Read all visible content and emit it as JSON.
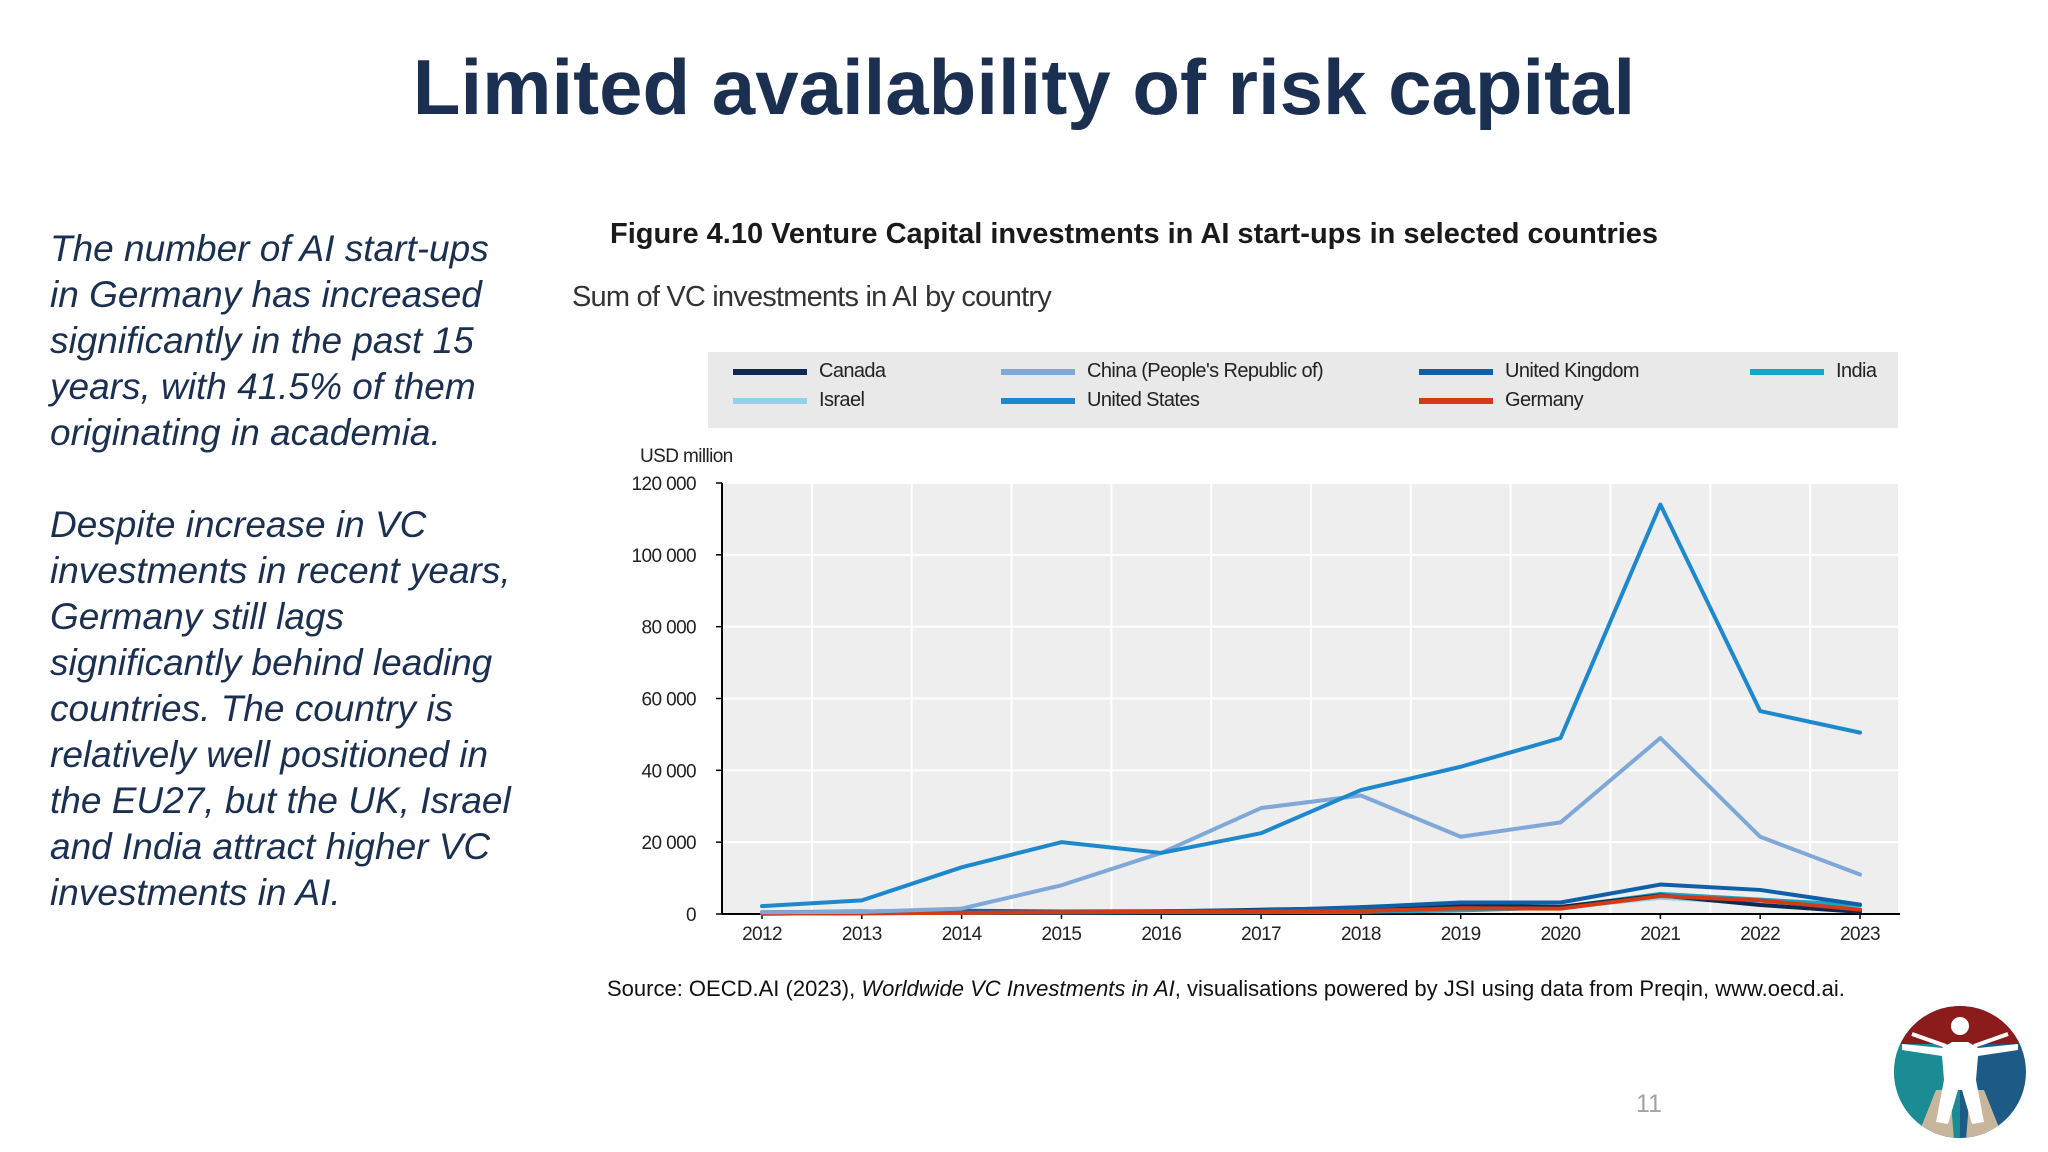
{
  "slide": {
    "title": "Limited availability of risk capital",
    "paragraphs": [
      "The number of AI start-ups in Germany has increased significantly in the past 15 years, with 41.5% of them originating in academia.",
      "Despite increase in VC investments in recent years, Germany still lags significantly behind leading countries. The country is relatively well positioned in the EU27, but the UK, Israel and India attract higher VC investments in AI."
    ],
    "figure_title": "Figure 4.10 Venture Capital investments in AI start-ups in selected countries",
    "source_prefix": "Source: OECD.AI (2023), ",
    "source_italic": "Worldwide VC Investments in AI",
    "source_suffix": ", visualisations powered by JSI using data from Preqin, www.oecd.ai.",
    "page_number": "11",
    "logo_icon": "vitruvian-man-logo-icon"
  },
  "chart_data": {
    "type": "line",
    "title": "Sum of VC investments in AI by country",
    "ylabel": "USD million",
    "xlabel": "",
    "x": [
      "2012",
      "2013",
      "2014",
      "2015",
      "2016",
      "2017",
      "2018",
      "2019",
      "2020",
      "2021",
      "2022",
      "2023"
    ],
    "ylim": [
      0,
      120000
    ],
    "yticks": [
      0,
      20000,
      40000,
      60000,
      80000,
      100000,
      120000
    ],
    "ytick_labels": [
      "0",
      "20 000",
      "40 000",
      "60 000",
      "80 000",
      "100 000",
      "120 000"
    ],
    "grid": "vertical",
    "legend_position": "top",
    "series": [
      {
        "name": "Canada",
        "color": "#0e2a52",
        "values": [
          100,
          200,
          500,
          600,
          700,
          1200,
          1600,
          2200,
          2000,
          5200,
          2500,
          600
        ]
      },
      {
        "name": "China (People's Republic of)",
        "color": "#7fa8d8",
        "values": [
          500,
          600,
          1500,
          8000,
          17000,
          29500,
          33000,
          21500,
          25500,
          49000,
          21500,
          11000
        ]
      },
      {
        "name": "United Kingdom",
        "color": "#1060a8",
        "values": [
          500,
          700,
          900,
          700,
          800,
          1000,
          1900,
          3200,
          3200,
          8200,
          6700,
          2600
        ]
      },
      {
        "name": "India",
        "color": "#13a8c8",
        "values": [
          100,
          200,
          300,
          400,
          500,
          500,
          600,
          1000,
          1800,
          5600,
          4000,
          2500
        ]
      },
      {
        "name": "Israel",
        "color": "#8dd4e8",
        "values": [
          150,
          250,
          400,
          500,
          600,
          800,
          1000,
          1500,
          1800,
          4500,
          3000,
          1500
        ]
      },
      {
        "name": "United States",
        "color": "#1e88cc",
        "values": [
          2200,
          3800,
          13000,
          20000,
          17000,
          22500,
          34500,
          41000,
          49000,
          114000,
          56500,
          50500
        ]
      },
      {
        "name": "Germany",
        "color": "#d23b16",
        "values": [
          100,
          200,
          300,
          500,
          600,
          600,
          800,
          1600,
          1500,
          5000,
          3800,
          1200
        ]
      }
    ],
    "legend_rows": [
      [
        "Canada",
        "China (People's Republic of)",
        "United Kingdom",
        "India"
      ],
      [
        "Israel",
        "United States",
        "Germany"
      ]
    ]
  }
}
